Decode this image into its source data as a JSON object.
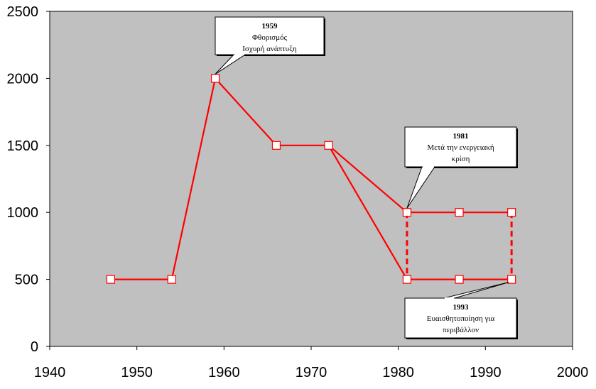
{
  "chart_data": {
    "type": "line",
    "xlim": [
      1940,
      2000
    ],
    "ylim": [
      0,
      2500
    ],
    "x_ticks": [
      1940,
      1950,
      1960,
      1970,
      1980,
      1990,
      2000
    ],
    "y_ticks": [
      0,
      500,
      1000,
      1500,
      2000,
      2500
    ],
    "grid": false,
    "plot_background": "#c0c0c0",
    "line_color": "#ff0000",
    "marker_fill": "#ffffff",
    "series": [
      {
        "style": "solid",
        "points": [
          [
            1947,
            500
          ],
          [
            1954,
            500
          ],
          [
            1959,
            2000
          ],
          [
            1966,
            1500
          ],
          [
            1972,
            1500
          ],
          [
            1981,
            1000
          ],
          [
            1987,
            1000
          ],
          [
            1993,
            1000
          ]
        ]
      },
      {
        "style": "solid",
        "points": [
          [
            1972,
            1500
          ],
          [
            1981,
            500
          ],
          [
            1987,
            500
          ],
          [
            1993,
            500
          ]
        ]
      },
      {
        "style": "dashed",
        "points": [
          [
            1981,
            1000
          ],
          [
            1981,
            500
          ]
        ]
      },
      {
        "style": "dashed",
        "points": [
          [
            1993,
            1000
          ],
          [
            1993,
            500
          ]
        ]
      }
    ],
    "annotations": [
      {
        "point": [
          1959,
          2000
        ],
        "lines": [
          "1959",
          "Φθορισμός",
          "Ισχυρή ανάπτυξη"
        ]
      },
      {
        "point": [
          1981,
          1000
        ],
        "lines": [
          "1981",
          "Μετά την ενεργειακή",
          "κρίση"
        ]
      },
      {
        "point": [
          1993,
          500
        ],
        "lines": [
          "1993",
          "Ευαισθητοποίηση για",
          "περιβάλλον"
        ]
      }
    ]
  }
}
